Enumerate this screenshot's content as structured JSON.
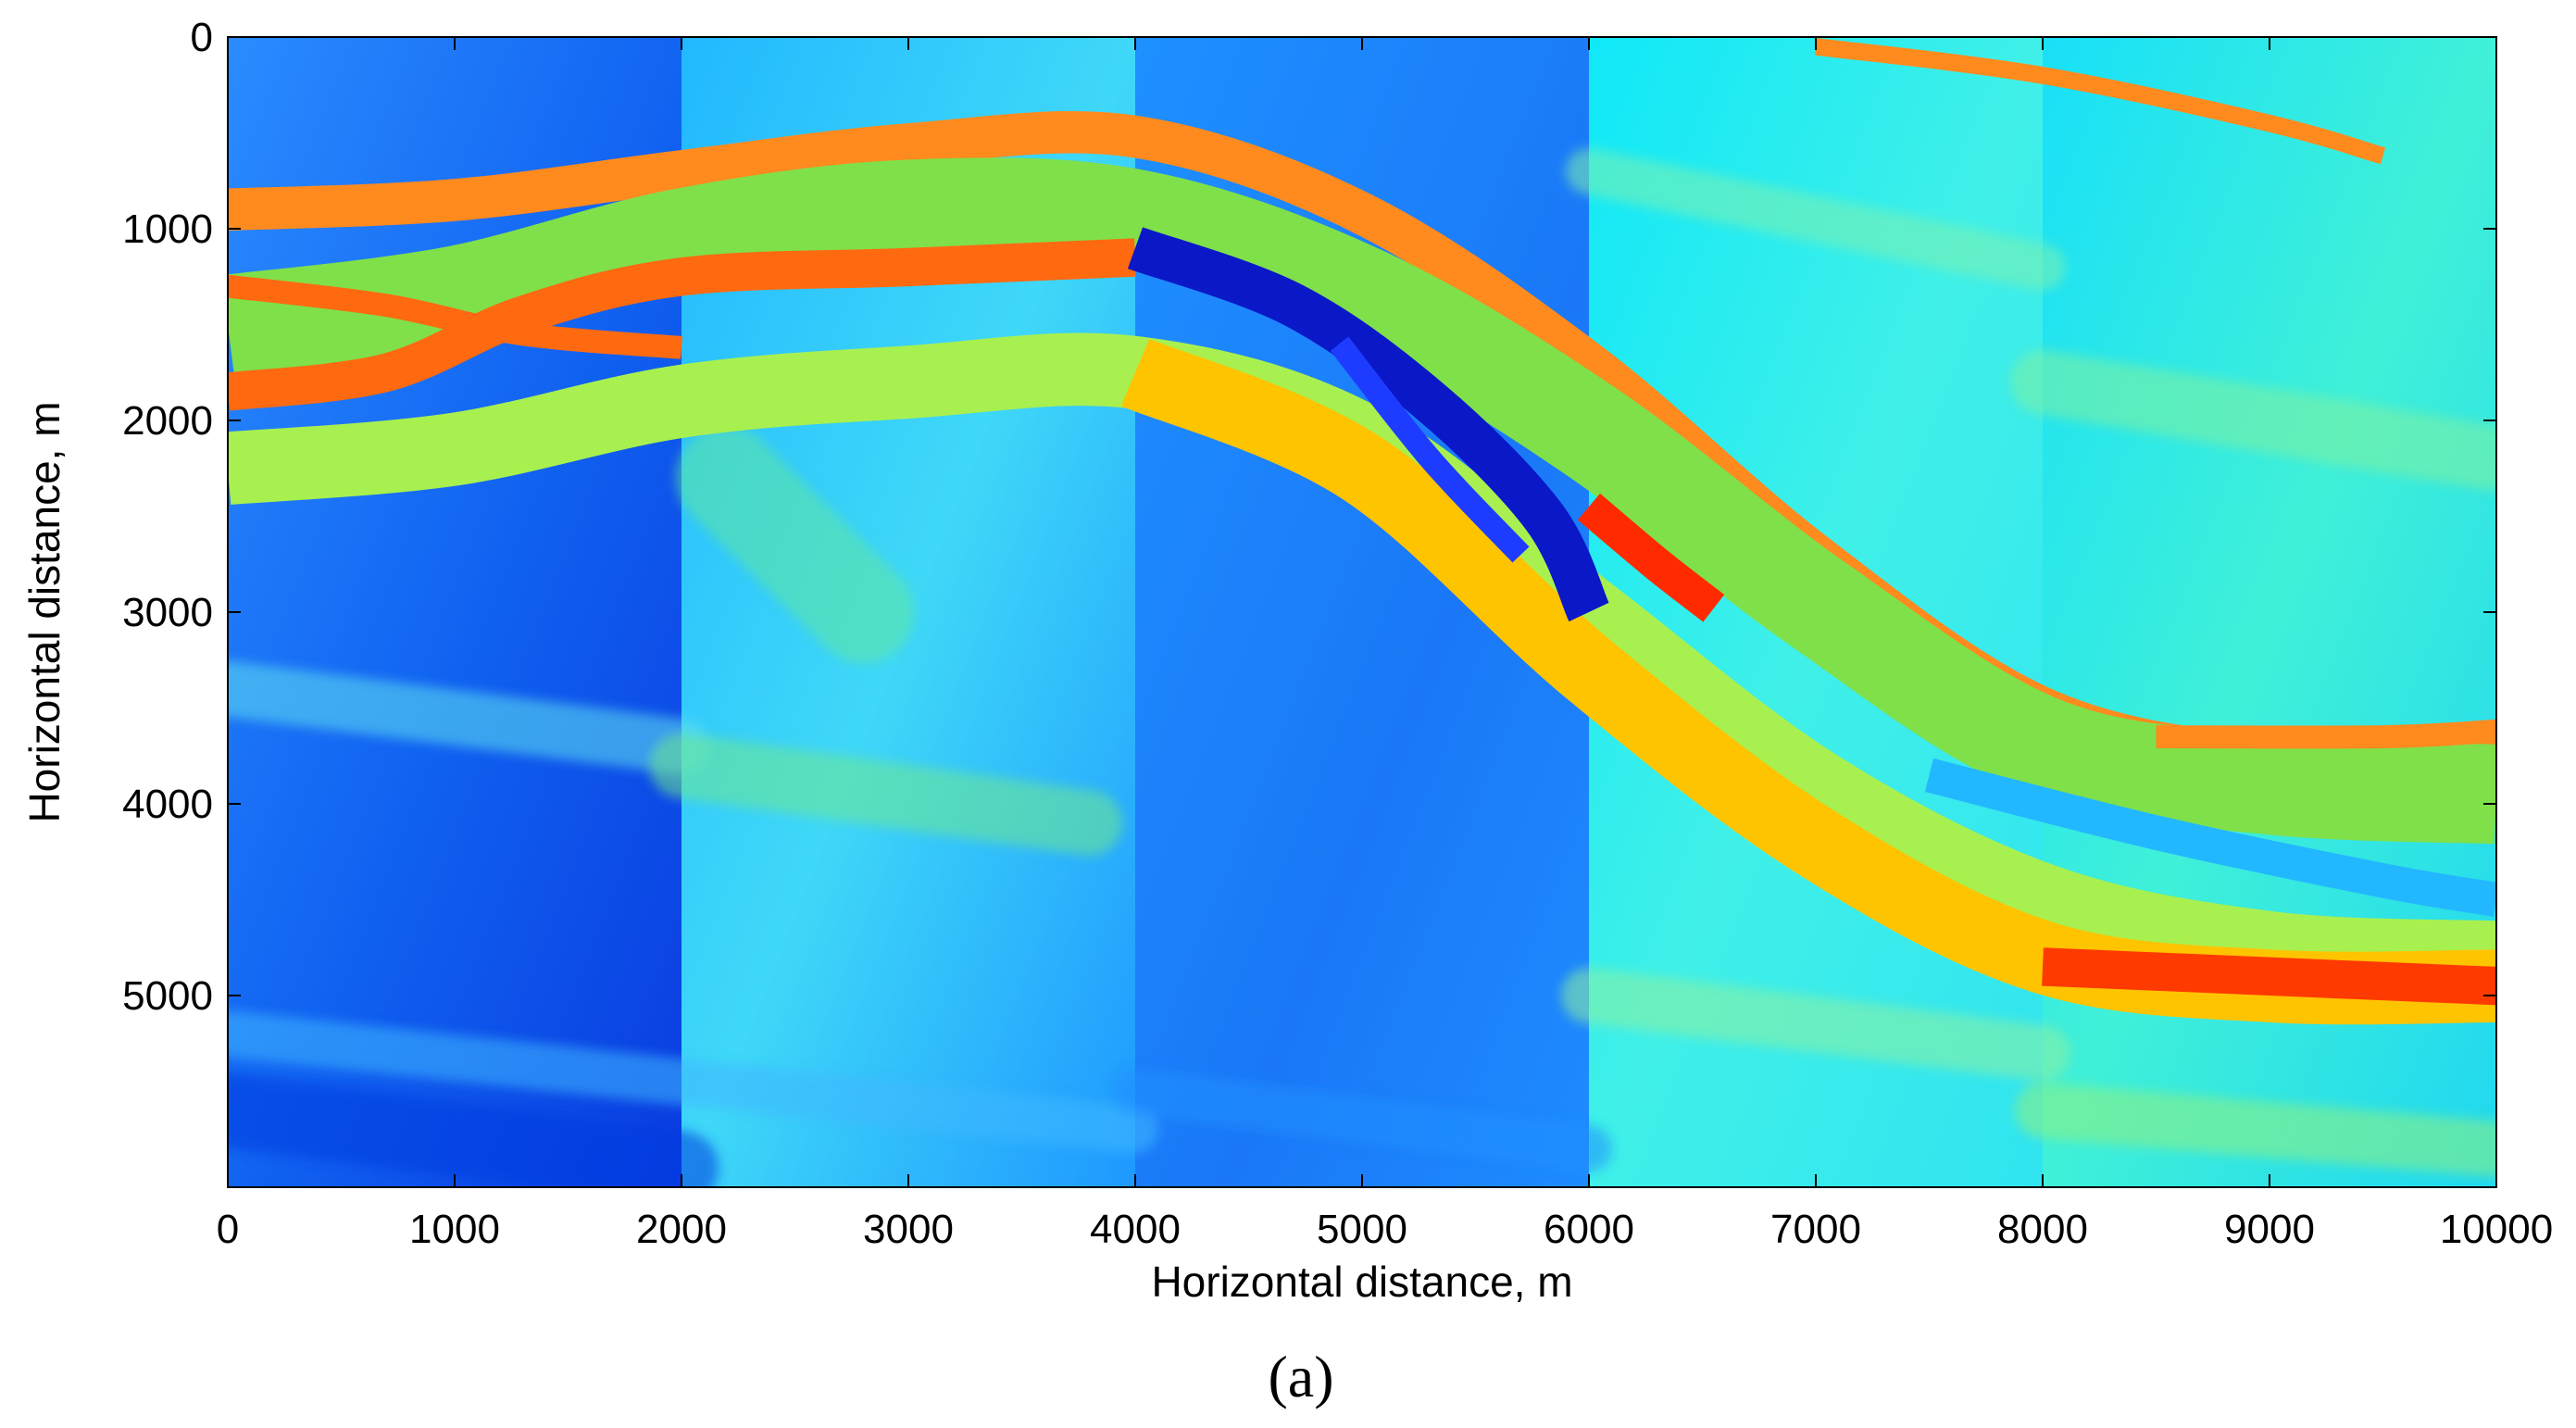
{
  "chart_data": {
    "type": "heatmap",
    "xlabel": "Horizontal distance, m",
    "ylabel": "Horizontal distance, m",
    "xlim": [
      0,
      10000
    ],
    "ylim": [
      6000,
      0
    ],
    "y_inverted": true,
    "x_ticks": [
      0,
      1000,
      2000,
      3000,
      4000,
      5000,
      6000,
      7000,
      8000,
      9000,
      10000
    ],
    "y_ticks": [
      0,
      1000,
      2000,
      3000,
      4000,
      5000
    ],
    "colormap": "jet",
    "panel_boundaries_x": [
      2000,
      4000,
      6000,
      8000
    ],
    "grid": false,
    "legend": "none",
    "bands": [
      {
        "name": "upper-orange-band",
        "color": "#ff8a1e",
        "width_m": 220,
        "points": [
          [
            0,
            900
          ],
          [
            1000,
            850
          ],
          [
            2000,
            700
          ],
          [
            3000,
            560
          ],
          [
            4000,
            520
          ],
          [
            5000,
            920
          ],
          [
            6000,
            1700
          ],
          [
            7000,
            2700
          ],
          [
            8000,
            3500
          ],
          [
            9000,
            3760
          ],
          [
            10000,
            3780
          ]
        ]
      },
      {
        "name": "upper-green-zone",
        "color": "#7fe04a",
        "width_m": 520,
        "points": [
          [
            0,
            1500
          ],
          [
            1000,
            1350
          ],
          [
            2000,
            1050
          ],
          [
            3000,
            900
          ],
          [
            4000,
            950
          ],
          [
            5000,
            1350
          ],
          [
            6000,
            2050
          ],
          [
            7000,
            2950
          ],
          [
            8000,
            3700
          ],
          [
            9000,
            3900
          ],
          [
            10000,
            3950
          ]
        ]
      },
      {
        "name": "crossing-band-a",
        "color": "#ff6a10",
        "width_m": 200,
        "points": [
          [
            0,
            1850
          ],
          [
            700,
            1750
          ],
          [
            1300,
            1450
          ],
          [
            2000,
            1250
          ],
          [
            3000,
            1200
          ],
          [
            4000,
            1150
          ]
        ]
      },
      {
        "name": "crossing-band-b",
        "color": "#ff6a10",
        "width_m": 120,
        "points": [
          [
            0,
            1300
          ],
          [
            700,
            1400
          ],
          [
            1300,
            1550
          ],
          [
            2000,
            1620
          ]
        ]
      },
      {
        "name": "lower-green-zone",
        "color": "#a8f050",
        "width_m": 380,
        "points": [
          [
            0,
            2250
          ],
          [
            1000,
            2150
          ],
          [
            2000,
            1900
          ],
          [
            3000,
            1800
          ],
          [
            4000,
            1750
          ],
          [
            5000,
            2100
          ],
          [
            6000,
            3000
          ],
          [
            7000,
            3900
          ],
          [
            8000,
            4500
          ],
          [
            9000,
            4750
          ],
          [
            10000,
            4800
          ]
        ]
      },
      {
        "name": "lower-yellow-band",
        "color": "#ffc400",
        "width_m": 380,
        "points": [
          [
            4000,
            1750
          ],
          [
            5000,
            2250
          ],
          [
            6000,
            3300
          ],
          [
            7000,
            4200
          ],
          [
            8000,
            4800
          ],
          [
            9000,
            4950
          ],
          [
            10000,
            4950
          ]
        ]
      },
      {
        "name": "dark-blue-lens",
        "color": "#0a18c8",
        "width_m": 230,
        "points": [
          [
            4000,
            1100
          ],
          [
            4700,
            1400
          ],
          [
            5300,
            1900
          ],
          [
            5800,
            2500
          ],
          [
            6000,
            3000
          ]
        ]
      },
      {
        "name": "dark-blue-lens-inner",
        "color": "#1e3cff",
        "width_m": 120,
        "points": [
          [
            4900,
            1600
          ],
          [
            5300,
            2200
          ],
          [
            5700,
            2700
          ]
        ]
      },
      {
        "name": "red-wedge",
        "color": "#ff2a00",
        "width_m": 180,
        "points": [
          [
            6000,
            2450
          ],
          [
            6300,
            2750
          ],
          [
            6550,
            2980
          ]
        ]
      },
      {
        "name": "right-red-band",
        "color": "#ff3a00",
        "width_m": 200,
        "points": [
          [
            8000,
            4850
          ],
          [
            9000,
            4900
          ],
          [
            10000,
            4950
          ]
        ]
      },
      {
        "name": "right-cyan-band",
        "color": "#22b8ff",
        "width_m": 180,
        "points": [
          [
            7500,
            3850
          ],
          [
            8500,
            4150
          ],
          [
            9500,
            4400
          ],
          [
            10000,
            4500
          ]
        ]
      },
      {
        "name": "right-upper-orange",
        "color": "#ff8a1e",
        "width_m": 120,
        "points": [
          [
            8500,
            3650
          ],
          [
            9500,
            3650
          ],
          [
            10000,
            3620
          ]
        ]
      },
      {
        "name": "top-right-orange",
        "color": "#ff8a1e",
        "width_m": 90,
        "points": [
          [
            7000,
            50
          ],
          [
            8000,
            200
          ],
          [
            9000,
            450
          ],
          [
            9500,
            620
          ]
        ]
      }
    ]
  },
  "caption": "(a)"
}
